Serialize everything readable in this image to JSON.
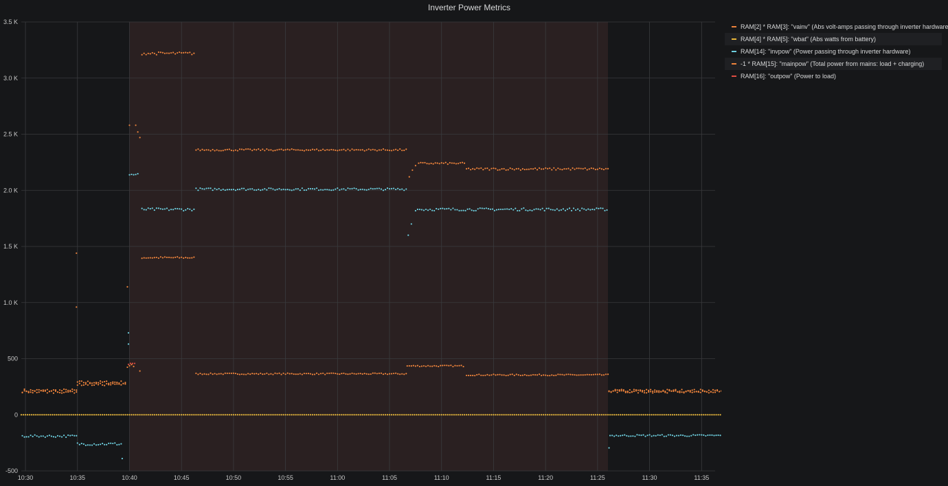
{
  "chart_data": {
    "type": "scatter",
    "title": "Inverter Power Metrics",
    "xlabel": "",
    "ylabel": "",
    "x_ticks": [
      "10:30",
      "10:35",
      "10:40",
      "10:45",
      "10:50",
      "10:55",
      "11:00",
      "11:05",
      "11:10",
      "11:15",
      "11:20",
      "11:25",
      "11:30",
      "11:35"
    ],
    "y_ticks": [
      "-500",
      "0",
      "500",
      "1.0 K",
      "1.5 K",
      "2.0 K",
      "2.5 K",
      "3.0 K",
      "3.5 K"
    ],
    "xlim": [
      "10:29.6",
      "10:36.9"
    ],
    "xlim_minutes": [
      629.6,
      696.3
    ],
    "ylim": [
      -500,
      3500
    ],
    "grid": true,
    "legend_position": "right",
    "shaded_region": {
      "start": "10:40",
      "end": "11:26",
      "color": "#2a2021"
    },
    "series": [
      {
        "name": "RAM[2] * RAM[3]: \"vainv\" (Abs volt-amps passing through inverter hardware)",
        "color": "#ef843c",
        "segments": [
          {
            "from": "10:29.7",
            "to": "10:34.9",
            "value": 215,
            "noise": 15
          },
          {
            "from": "10:35.0",
            "to": "10:39.7",
            "value": 290,
            "noise": 12
          },
          {
            "from": "10:39.8",
            "to": "10:40.4",
            "value": 430,
            "noise": 20
          },
          {
            "from": "10:41.2",
            "to": "10:46.2",
            "value": 1400,
            "noise": 8
          },
          {
            "from": "10:46.4",
            "to": "11:06.6",
            "value": 365,
            "noise": 6
          },
          {
            "from": "11:06.7",
            "to": "11:12.2",
            "value": 435,
            "noise": 6
          },
          {
            "from": "11:12.4",
            "to": "11:26.0",
            "value": 355,
            "noise": 6
          },
          {
            "from": "11:26.1",
            "to": "11:36.9",
            "value": 215,
            "noise": 12
          }
        ],
        "points": [
          {
            "x": "10:34.9",
            "y": 1440
          },
          {
            "x": "10:34.9",
            "y": 960
          },
          {
            "x": "10:39.8",
            "y": 1140
          },
          {
            "x": "10:41.0",
            "y": 390
          }
        ]
      },
      {
        "name": "RAM[4] * RAM[5]: \"wbat\" (Abs watts from battery)",
        "color": "#eab839",
        "segments": [
          {
            "from": "10:29.6",
            "to": "11:36.9",
            "value": 0,
            "noise": 0
          }
        ],
        "points": []
      },
      {
        "name": "RAM[14]: \"invpow\" (Power passing through inverter hardware)",
        "color": "#6ed0e0",
        "segments": [
          {
            "from": "10:29.7",
            "to": "10:34.9",
            "value": -190,
            "noise": 10
          },
          {
            "from": "10:35.0",
            "to": "10:39.2",
            "value": -260,
            "noise": 12
          },
          {
            "from": "10:40.0",
            "to": "10:40.9",
            "value": 2140,
            "noise": 10
          },
          {
            "from": "10:41.2",
            "to": "10:46.2",
            "value": 1830,
            "noise": 12
          },
          {
            "from": "10:46.4",
            "to": "11:06.6",
            "value": 2010,
            "noise": 10
          },
          {
            "from": "11:07.5",
            "to": "11:26.0",
            "value": 1830,
            "noise": 12
          },
          {
            "from": "11:26.2",
            "to": "11:36.9",
            "value": -185,
            "noise": 8
          }
        ],
        "points": [
          {
            "x": "10:39.3",
            "y": -390
          },
          {
            "x": "10:39.9",
            "y": 730
          },
          {
            "x": "10:39.9",
            "y": 630
          },
          {
            "x": "11:06.8",
            "y": 1600
          },
          {
            "x": "11:07.1",
            "y": 1700
          },
          {
            "x": "11:26.1",
            "y": -295
          }
        ]
      },
      {
        "name": "-1 * RAM[15]: \"mainpow\" (Total power from mains: load + charging)",
        "color": "#ef843c",
        "segments": [
          {
            "from": "10:29.7",
            "to": "10:34.9",
            "value": 205,
            "noise": 12
          },
          {
            "from": "10:35.0",
            "to": "10:39.7",
            "value": 270,
            "noise": 10
          },
          {
            "from": "10:41.2",
            "to": "10:46.2",
            "value": 3220,
            "noise": 12
          },
          {
            "from": "10:46.4",
            "to": "11:06.6",
            "value": 2360,
            "noise": 8
          },
          {
            "from": "11:07.8",
            "to": "11:12.2",
            "value": 2240,
            "noise": 8
          },
          {
            "from": "11:12.4",
            "to": "11:26.0",
            "value": 2190,
            "noise": 10
          },
          {
            "from": "11:26.1",
            "to": "11:36.9",
            "value": 205,
            "noise": 10
          }
        ],
        "points": [
          {
            "x": "10:40.0",
            "y": 2580
          },
          {
            "x": "10:40.6",
            "y": 2580
          },
          {
            "x": "10:40.8",
            "y": 2520
          },
          {
            "x": "10:41.0",
            "y": 2470
          },
          {
            "x": "11:06.9",
            "y": 2120
          },
          {
            "x": "11:07.2",
            "y": 2180
          },
          {
            "x": "11:07.5",
            "y": 2220
          }
        ]
      },
      {
        "name": "RAM[16]: \"outpow\" (Power to load)",
        "color": "#e24d42",
        "segments": [
          {
            "from": "10:39.9",
            "to": "10:40.6",
            "value": 455,
            "noise": 6
          }
        ],
        "points": []
      }
    ]
  }
}
